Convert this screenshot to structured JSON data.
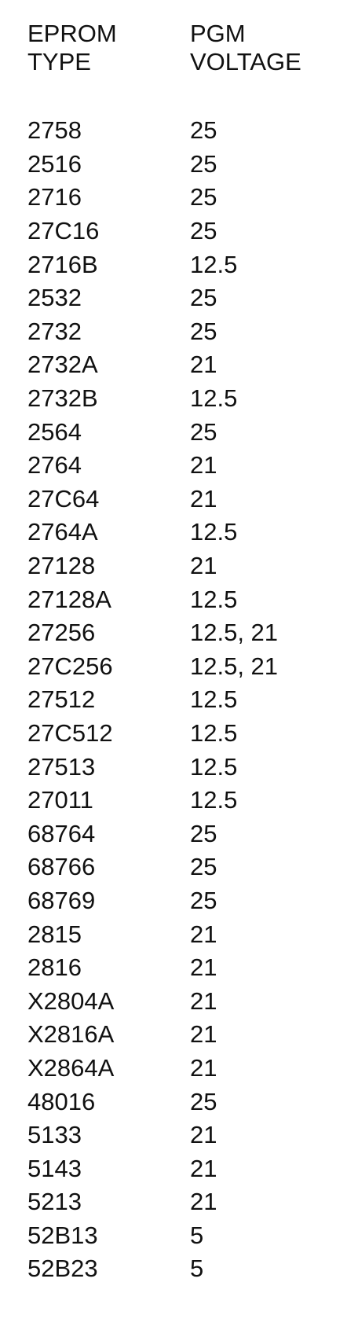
{
  "header": {
    "type_line1": "EPROM",
    "type_line2": "TYPE",
    "voltage_line1": "PGM",
    "voltage_line2": "VOLTAGE"
  },
  "rows": [
    {
      "type": "2758",
      "voltage": "25"
    },
    {
      "type": "2516",
      "voltage": "25"
    },
    {
      "type": "2716",
      "voltage": "25"
    },
    {
      "type": "27C16",
      "voltage": "25"
    },
    {
      "type": "2716B",
      "voltage": "12.5"
    },
    {
      "type": "2532",
      "voltage": "25"
    },
    {
      "type": "2732",
      "voltage": "25"
    },
    {
      "type": "2732A",
      "voltage": "21"
    },
    {
      "type": "2732B",
      "voltage": "12.5"
    },
    {
      "type": "2564",
      "voltage": "25"
    },
    {
      "type": "2764",
      "voltage": "21"
    },
    {
      "type": "27C64",
      "voltage": "21"
    },
    {
      "type": "2764A",
      "voltage": "12.5"
    },
    {
      "type": "27128",
      "voltage": "21"
    },
    {
      "type": "27128A",
      "voltage": "12.5"
    },
    {
      "type": "27256",
      "voltage": "12.5, 21"
    },
    {
      "type": "27C256",
      "voltage": "12.5, 21"
    },
    {
      "type": "27512",
      "voltage": "12.5"
    },
    {
      "type": "27C512",
      "voltage": "12.5"
    },
    {
      "type": "27513",
      "voltage": "12.5"
    },
    {
      "type": "27011",
      "voltage": "12.5"
    },
    {
      "type": "68764",
      "voltage": "25"
    },
    {
      "type": "68766",
      "voltage": "25"
    },
    {
      "type": "68769",
      "voltage": "25"
    },
    {
      "type": "2815",
      "voltage": "21"
    },
    {
      "type": "2816",
      "voltage": "21"
    },
    {
      "type": "X2804A",
      "voltage": "21"
    },
    {
      "type": "X2816A",
      "voltage": "21"
    },
    {
      "type": "X2864A",
      "voltage": "21"
    },
    {
      "type": "48016",
      "voltage": "25"
    },
    {
      "type": "5133",
      "voltage": "21"
    },
    {
      "type": "5143",
      "voltage": "21"
    },
    {
      "type": "5213",
      "voltage": "21"
    },
    {
      "type": "52B13",
      "voltage": "5"
    },
    {
      "type": "52B23",
      "voltage": "5"
    }
  ]
}
